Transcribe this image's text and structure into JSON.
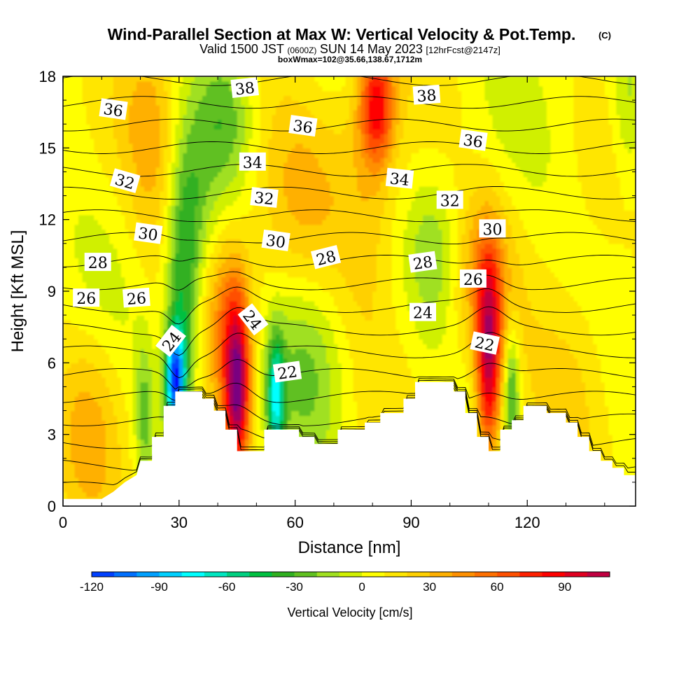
{
  "chart_data": {
    "type": "heatmap",
    "title": "Wind-Parallel Section at Max W: Vertical Velocity & Pot.Temp.",
    "copyright": "(C)",
    "subtitle": {
      "valid": "Valid 1500 JST",
      "zulu": "(0600Z)",
      "date": "SUN 14 May 2023",
      "fcst": "[12hrFcst@2147z]"
    },
    "box_info": "boxWmax=102@35.66,138.67,1712m",
    "xlabel": "Distance [nm]",
    "ylabel": "Height [Kft MSL]",
    "xlim": [
      0,
      148
    ],
    "ylim": [
      0,
      18
    ],
    "x_ticks": [
      0,
      30,
      60,
      90,
      120
    ],
    "y_ticks": [
      0,
      3,
      6,
      9,
      12,
      15,
      18
    ],
    "colorbar": {
      "title": "Vertical Velocity [cm/s]",
      "min": -120,
      "max": 110,
      "step": 10,
      "tick_values": [
        -120,
        -90,
        -60,
        -30,
        0,
        30,
        60,
        90
      ],
      "colors": [
        "#0000ff",
        "#0040ff",
        "#0070ff",
        "#00a0ff",
        "#00d0ff",
        "#00ffff",
        "#00e6c0",
        "#00d080",
        "#00c040",
        "#30b020",
        "#60c020",
        "#a0e020",
        "#d0f000",
        "#ffff00",
        "#ffe600",
        "#ffd000",
        "#ffb000",
        "#ff9000",
        "#ff7000",
        "#ff5000",
        "#ff2000",
        "#ff0000",
        "#e00020",
        "#c00040",
        "#a00060",
        "#7a0080"
      ]
    },
    "terrain_profile": {
      "x": [
        0,
        10,
        13,
        16,
        19,
        20,
        23,
        23,
        26,
        26,
        29,
        29,
        32,
        32,
        36,
        36,
        39,
        39,
        42,
        42,
        45,
        45,
        52,
        52,
        55,
        55,
        58,
        58,
        61,
        61,
        65,
        65,
        71,
        71,
        78,
        78,
        82,
        82,
        85,
        85,
        88,
        88,
        91,
        91,
        94,
        94,
        101,
        101,
        104,
        104,
        107,
        107,
        110,
        110,
        113,
        113,
        116,
        116,
        119,
        119,
        125,
        125,
        130,
        130,
        133,
        133,
        136,
        136,
        139,
        139,
        142,
        142,
        145,
        145,
        148
      ],
      "height": [
        0.3,
        0.3,
        0.6,
        1.0,
        1.3,
        1.9,
        1.9,
        2.9,
        2.9,
        4.2,
        4.2,
        4.8,
        4.8,
        4.8,
        4.8,
        4.5,
        4.5,
        4.0,
        4.0,
        3.2,
        3.2,
        2.3,
        2.3,
        3.2,
        3.2,
        3.2,
        3.2,
        3.2,
        3.2,
        2.9,
        2.9,
        2.6,
        2.6,
        3.2,
        3.2,
        3.5,
        3.5,
        3.9,
        3.9,
        3.9,
        3.9,
        4.5,
        4.5,
        5.2,
        5.2,
        5.2,
        5.2,
        4.8,
        4.8,
        3.9,
        3.9,
        2.9,
        2.9,
        2.3,
        2.3,
        3.2,
        3.2,
        3.6,
        3.6,
        4.2,
        4.2,
        3.9,
        3.9,
        3.5,
        3.5,
        2.9,
        2.9,
        2.3,
        2.3,
        1.9,
        1.9,
        1.6,
        1.6,
        1.3,
        1.3
      ]
    },
    "features": [
      {
        "x": 45,
        "z": 4.8,
        "sx": 2.2,
        "sz": 2.4,
        "w": 100
      },
      {
        "x": 43,
        "z": 7.5,
        "sx": 4.0,
        "sz": 2.8,
        "w": 40
      },
      {
        "x": 110,
        "z": 6.0,
        "sx": 2.2,
        "sz": 3.0,
        "w": 90
      },
      {
        "x": 109,
        "z": 9.5,
        "sx": 5.0,
        "sz": 2.5,
        "w": 30
      },
      {
        "x": 81,
        "z": 16.8,
        "sx": 3.0,
        "sz": 1.7,
        "w": 70
      },
      {
        "x": 80,
        "z": 13.0,
        "sx": 6.0,
        "sz": 4.5,
        "w": 22
      },
      {
        "x": 29,
        "z": 5.3,
        "sx": 1.8,
        "sz": 1.5,
        "w": -110
      },
      {
        "x": 31,
        "z": 8.5,
        "sx": 3.0,
        "sz": 3.5,
        "w": -45
      },
      {
        "x": 33,
        "z": 12.5,
        "sx": 4.0,
        "sz": 3.0,
        "w": -22
      },
      {
        "x": 42,
        "z": 16.5,
        "sx": 5.0,
        "sz": 2.5,
        "w": -28
      },
      {
        "x": 55,
        "z": 4.5,
        "sx": 1.6,
        "sz": 1.8,
        "w": -70
      },
      {
        "x": 63,
        "z": 6.0,
        "sx": 7.0,
        "sz": 3.0,
        "w": -22
      },
      {
        "x": 116,
        "z": 5.0,
        "sx": 1.4,
        "sz": 1.8,
        "w": -45
      },
      {
        "x": 96,
        "z": 10.5,
        "sx": 4.0,
        "sz": 2.0,
        "w": -18
      },
      {
        "x": 146,
        "z": 16.5,
        "sx": 3.0,
        "sz": 2.5,
        "w": -20
      },
      {
        "x": 21,
        "z": 4.0,
        "sx": 1.6,
        "sz": 2.0,
        "w": -30
      },
      {
        "x": 23,
        "z": 15.5,
        "sx": 5.0,
        "sz": 3.5,
        "w": 25
      },
      {
        "x": 7,
        "z": 3.5,
        "sx": 6.0,
        "sz": 3.0,
        "w": 22
      },
      {
        "x": 60,
        "z": 13.0,
        "sx": 10.0,
        "sz": 4.0,
        "w": 18
      },
      {
        "x": 132,
        "z": 5.5,
        "sx": 8.0,
        "sz": 3.0,
        "w": 22
      }
    ],
    "contour_levels": [
      20,
      21,
      22,
      23,
      24,
      25,
      26,
      27,
      28,
      29,
      30,
      31,
      32,
      33,
      34,
      35,
      36,
      37,
      38,
      39
    ],
    "contour_labels": [
      {
        "text": "36",
        "x": 13,
        "z": 16.6,
        "rot": 8
      },
      {
        "text": "38",
        "x": 47,
        "z": 17.5,
        "rot": -6
      },
      {
        "text": "38",
        "x": 94,
        "z": 17.2,
        "rot": -4
      },
      {
        "text": "36",
        "x": 62,
        "z": 15.9,
        "rot": 8
      },
      {
        "text": "36",
        "x": 106,
        "z": 15.3,
        "rot": 8
      },
      {
        "text": "34",
        "x": 49,
        "z": 14.4,
        "rot": 0
      },
      {
        "text": "34",
        "x": 87,
        "z": 13.7,
        "rot": 6
      },
      {
        "text": "32",
        "x": 16,
        "z": 13.6,
        "rot": 16
      },
      {
        "text": "32",
        "x": 52,
        "z": 12.9,
        "rot": 6
      },
      {
        "text": "32",
        "x": 100,
        "z": 12.8,
        "rot": 0
      },
      {
        "text": "30",
        "x": 22,
        "z": 11.4,
        "rot": 8
      },
      {
        "text": "30",
        "x": 55,
        "z": 11.1,
        "rot": 8
      },
      {
        "text": "30",
        "x": 111,
        "z": 11.6,
        "rot": 0
      },
      {
        "text": "28",
        "x": 9,
        "z": 10.2,
        "rot": 0
      },
      {
        "text": "28",
        "x": 68,
        "z": 10.4,
        "rot": -14
      },
      {
        "text": "28",
        "x": 93,
        "z": 10.2,
        "rot": -8
      },
      {
        "text": "26",
        "x": 6,
        "z": 8.7,
        "rot": 0
      },
      {
        "text": "26",
        "x": 19,
        "z": 8.7,
        "rot": -4
      },
      {
        "text": "26",
        "x": 106,
        "z": 9.5,
        "rot": 0
      },
      {
        "text": "24",
        "x": 28,
        "z": 6.9,
        "rot": -52
      },
      {
        "text": "24",
        "x": 49,
        "z": 7.8,
        "rot": 52
      },
      {
        "text": "24",
        "x": 93,
        "z": 8.1,
        "rot": 0
      },
      {
        "text": "22",
        "x": 58,
        "z": 5.6,
        "rot": -8
      },
      {
        "text": "22",
        "x": 109,
        "z": 6.8,
        "rot": 12
      }
    ]
  }
}
